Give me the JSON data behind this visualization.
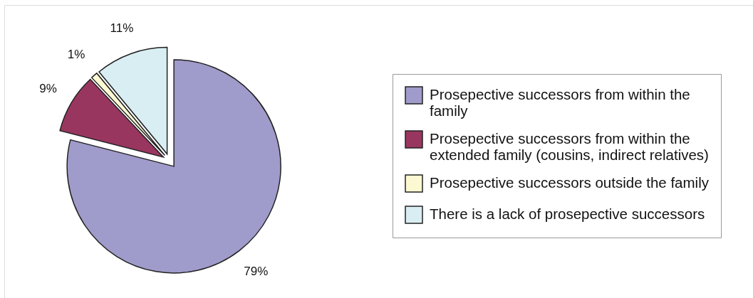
{
  "chart_data": {
    "type": "pie",
    "categories": [
      "Prosepective successors from within the family",
      "Prosepective successors from within the extended family (cousins, indirect relatives)",
      "Prosepective successors outside the family",
      "There is a lack of prosepective successors"
    ],
    "values": [
      79,
      9,
      1,
      11
    ],
    "colors": [
      "#9f9ccb",
      "#993660",
      "#fcf9d2",
      "#d9eef3"
    ],
    "value_labels": [
      "79%",
      "9%",
      "1%",
      "11%"
    ],
    "legend": "right"
  }
}
